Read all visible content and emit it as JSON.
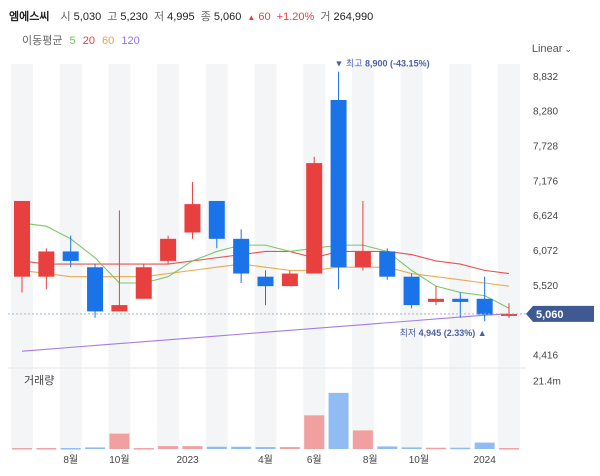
{
  "header": {
    "name": "엠에스씨",
    "open_label": "시",
    "open": "5,030",
    "high_label": "고",
    "high": "5,230",
    "low_label": "저",
    "low": "4,995",
    "close_label": "종",
    "close": "5,060",
    "change_arrow": "▲",
    "change": "60",
    "change_pct": "+1.20%",
    "volume_label": "거",
    "volume": "264,990"
  },
  "moving_average": {
    "label": "이동평균",
    "periods": [
      {
        "value": "5",
        "color": "#6ec25a"
      },
      {
        "value": "20",
        "color": "#e8403f"
      },
      {
        "value": "60",
        "color": "#e9a23b"
      },
      {
        "value": "120",
        "color": "#9a6fe6"
      }
    ]
  },
  "scale_mode": {
    "label": "Linear",
    "chevron": "⌄"
  },
  "colors": {
    "up": "#e8403f",
    "down": "#1a73e8",
    "price_tag": "#3f5a92"
  },
  "chart_data": {
    "type": "candlestick",
    "price_axis": {
      "ticks": [
        8832,
        8280,
        7728,
        7176,
        6624,
        6072,
        5520,
        4416
      ],
      "tick_labels": [
        "8,832",
        "8,280",
        "7,728",
        "7,176",
        "6,624",
        "6,072",
        "5,520",
        "4,416"
      ],
      "range": [
        4330,
        9020
      ]
    },
    "current_price": {
      "value": 5060,
      "label": "5,060"
    },
    "max_annotation": {
      "marker": "▼",
      "label": "최고",
      "value": "8,900 (-43.15%)"
    },
    "min_annotation": {
      "label": "최저",
      "value": "4,945 (2.33%)",
      "marker": "▲"
    },
    "candles": [
      {
        "o": 5650,
        "h": 6850,
        "l": 5400,
        "c": 6850
      },
      {
        "o": 5650,
        "h": 6100,
        "l": 5450,
        "c": 6050
      },
      {
        "o": 6050,
        "h": 6300,
        "l": 5800,
        "c": 5900
      },
      {
        "o": 5800,
        "h": 5850,
        "l": 5000,
        "c": 5100
      },
      {
        "o": 5100,
        "h": 6700,
        "l": 5100,
        "c": 5200
      },
      {
        "o": 5300,
        "h": 5850,
        "l": 5300,
        "c": 5800
      },
      {
        "o": 5900,
        "h": 6300,
        "l": 5850,
        "c": 6250
      },
      {
        "o": 6350,
        "h": 7150,
        "l": 6250,
        "c": 6800
      },
      {
        "o": 6850,
        "h": 6850,
        "l": 6100,
        "c": 6250
      },
      {
        "o": 6250,
        "h": 6400,
        "l": 5550,
        "c": 5700
      },
      {
        "o": 5650,
        "h": 5750,
        "l": 5200,
        "c": 5500
      },
      {
        "o": 5500,
        "h": 5750,
        "l": 5500,
        "c": 5700
      },
      {
        "o": 5700,
        "h": 7550,
        "l": 5700,
        "c": 7450
      },
      {
        "o": 8450,
        "h": 8900,
        "l": 5450,
        "c": 5800
      },
      {
        "o": 5800,
        "h": 6850,
        "l": 5750,
        "c": 6050
      },
      {
        "o": 6050,
        "h": 6100,
        "l": 5600,
        "c": 5650
      },
      {
        "o": 5650,
        "h": 5700,
        "l": 5150,
        "c": 5200
      },
      {
        "o": 5250,
        "h": 5500,
        "l": 5200,
        "c": 5300
      },
      {
        "o": 5300,
        "h": 5400,
        "l": 5000,
        "c": 5250
      },
      {
        "o": 5300,
        "h": 5650,
        "l": 4945,
        "c": 5050
      },
      {
        "o": 5030,
        "h": 5230,
        "l": 4995,
        "c": 5060
      }
    ],
    "ma5": [
      6500,
      6450,
      6250,
      5950,
      5550,
      5550,
      5650,
      5900,
      6050,
      6150,
      6150,
      6050,
      6100,
      6150,
      6150,
      6050,
      5750,
      5500,
      5400,
      5350,
      5150
    ],
    "ma20": [
      5900,
      5850,
      5850,
      5850,
      5850,
      5850,
      5850,
      5900,
      5950,
      6000,
      6050,
      6050,
      5950,
      6050,
      6050,
      6050,
      6000,
      5900,
      5850,
      5750,
      5700
    ],
    "ma60": [
      5750,
      5700,
      5650,
      5650,
      5650,
      5650,
      5700,
      5750,
      5800,
      5850,
      5800,
      5750,
      5750,
      5800,
      5800,
      5800,
      5700,
      5650,
      5600,
      5550,
      5500
    ],
    "ma120": [
      4470,
      4500,
      4530,
      4560,
      4590,
      4620,
      4650,
      4680,
      4710,
      4740,
      4770,
      4800,
      4830,
      4860,
      4890,
      4920,
      4950,
      4980,
      5010,
      5040,
      5060
    ],
    "volume": {
      "label": "거래량",
      "tick_label": "21.4m",
      "tick_value": 21.4,
      "max": 24,
      "values": [
        0.3,
        0.3,
        0.3,
        0.5,
        4.8,
        0.3,
        0.9,
        0.9,
        0.7,
        0.7,
        0.6,
        0.6,
        10.5,
        17.5,
        5.8,
        0.8,
        0.5,
        0.4,
        0.4,
        2.0,
        0.3
      ]
    },
    "x_axis": {
      "labels": [
        {
          "text": "8월",
          "at": 2
        },
        {
          "text": "10월",
          "at": 4
        },
        {
          "text": "2023",
          "at": 6.8
        },
        {
          "text": "4월",
          "at": 10
        },
        {
          "text": "6월",
          "at": 12
        },
        {
          "text": "8월",
          "at": 14.3
        },
        {
          "text": "10월",
          "at": 16.3
        },
        {
          "text": "2024",
          "at": 19
        }
      ]
    }
  }
}
